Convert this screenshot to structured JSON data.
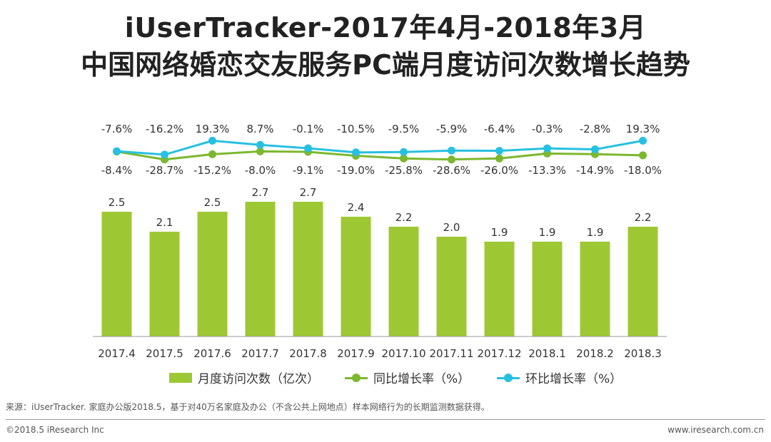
{
  "title_line1": "iUserTracker-2017年4月-2018年3月",
  "title_line2": "中国网络婚恋交友服务PC端月度访问次数增长趋势",
  "legend": {
    "bar": "月度访问次数（亿次）",
    "yoy": "同比增长率（%）",
    "mom": "环比增长率（%）"
  },
  "colors": {
    "bar": "#9dc834",
    "yoy": "#7cb82f",
    "mom": "#27c0e0"
  },
  "chart_data": {
    "type": "bar",
    "categories": [
      "2017.4",
      "2017.5",
      "2017.6",
      "2017.7",
      "2017.8",
      "2017.9",
      "2017.10",
      "2017.11",
      "2017.12",
      "2018.1",
      "2018.2",
      "2018.3"
    ],
    "series": [
      {
        "name": "月度访问次数（亿次）",
        "type": "bar",
        "values": [
          2.5,
          2.1,
          2.5,
          2.7,
          2.7,
          2.4,
          2.2,
          2.0,
          1.9,
          1.9,
          1.9,
          2.2
        ],
        "labels": [
          "2.5",
          "2.1",
          "2.5",
          "2.7",
          "2.7",
          "2.4",
          "2.2",
          "2.0",
          "1.9",
          "1.9",
          "1.9",
          "2.2"
        ]
      },
      {
        "name": "同比增长率（%）",
        "type": "line",
        "values": [
          -8.4,
          -28.7,
          -15.2,
          -8.0,
          -9.1,
          -19.0,
          -25.8,
          -28.6,
          -26.0,
          -13.3,
          -14.9,
          -18.0
        ],
        "labels": [
          "-8.4%",
          "-28.7%",
          "-15.2%",
          "-8.0%",
          "-9.1%",
          "-19.0%",
          "-25.8%",
          "-28.6%",
          "-26.0%",
          "-13.3%",
          "-14.9%",
          "-18.0%"
        ]
      },
      {
        "name": "环比增长率（%）",
        "type": "line",
        "values": [
          -7.6,
          -16.2,
          19.3,
          8.7,
          -0.1,
          -10.5,
          -9.5,
          -5.9,
          -6.4,
          -0.3,
          -2.8,
          19.3
        ],
        "labels": [
          "-7.6%",
          "-16.2%",
          "19.3%",
          "8.7%",
          "-0.1%",
          "-10.5%",
          "-9.5%",
          "-5.9%",
          "-6.4%",
          "-0.3%",
          "-2.8%",
          "19.3%"
        ]
      }
    ],
    "title": "iUserTracker-2017年4月-2018年3月 中国网络婚恋交友服务PC端月度访问次数增长趋势",
    "xlabel": "",
    "ylabel": "",
    "grid": false,
    "legend_position": "bottom"
  },
  "footer": {
    "source": "来源：iUserTracker. 家庭办公版2018.5，基于对40万名家庭及办公（不含公共上网地点）样本网络行为的长期监测数据获得。",
    "copyright": "©2018.5 iResearch Inc",
    "website": "www.iresearch.com.cn"
  }
}
